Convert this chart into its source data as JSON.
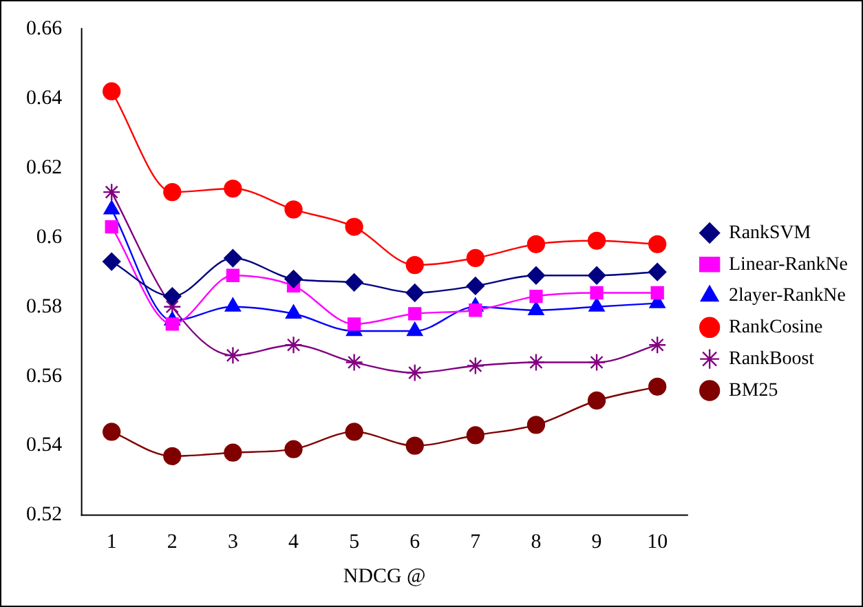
{
  "chart_data": {
    "type": "line",
    "xlabel": "NDCG @",
    "categories": [
      "1",
      "2",
      "3",
      "4",
      "5",
      "6",
      "7",
      "8",
      "9",
      "10"
    ],
    "ylim": [
      0.52,
      0.66
    ],
    "yticks": [
      0.52,
      0.54,
      0.56,
      0.58,
      0.6,
      0.62,
      0.64,
      0.66
    ],
    "grid": false,
    "legend": "right",
    "series": [
      {
        "name": "RankSVM",
        "color": "#000080",
        "marker": "diamond",
        "values": [
          0.593,
          0.583,
          0.594,
          0.588,
          0.587,
          0.584,
          0.586,
          0.589,
          0.589,
          0.59
        ]
      },
      {
        "name": "Linear-RankNe",
        "color": "#ff00ff",
        "marker": "square",
        "values": [
          0.603,
          0.575,
          0.589,
          0.586,
          0.575,
          0.578,
          0.579,
          0.583,
          0.584,
          0.584
        ]
      },
      {
        "name": "2layer-RankNe",
        "color": "#0000ff",
        "marker": "triangle",
        "values": [
          0.608,
          0.576,
          0.58,
          0.578,
          0.573,
          0.573,
          0.58,
          0.579,
          0.58,
          0.581
        ]
      },
      {
        "name": "RankCosine",
        "color": "#ff0000",
        "marker": "circle",
        "values": [
          0.642,
          0.613,
          0.614,
          0.608,
          0.603,
          0.592,
          0.594,
          0.598,
          0.599,
          0.598
        ]
      },
      {
        "name": "RankBoost",
        "color": "#800080",
        "marker": "cross",
        "values": [
          0.613,
          0.58,
          0.566,
          0.569,
          0.564,
          0.561,
          0.563,
          0.564,
          0.564,
          0.569
        ]
      },
      {
        "name": "BM25",
        "color": "#800000",
        "marker": "circle",
        "values": [
          0.544,
          0.537,
          0.538,
          0.539,
          0.544,
          0.54,
          0.543,
          0.546,
          0.553,
          0.557
        ]
      }
    ]
  }
}
